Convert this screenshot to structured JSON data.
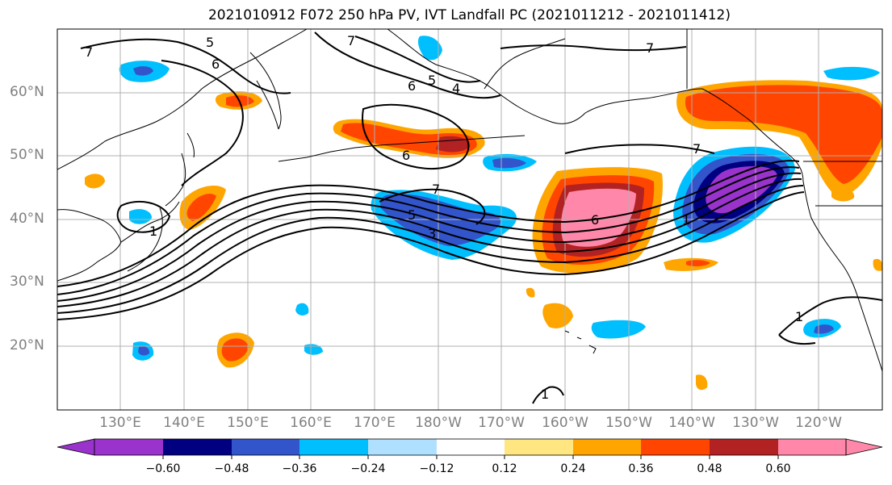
{
  "title": "2021010912 F072 250 hPa PV, IVT Landfall PC (2021011212 - 2021011412)",
  "lat_labels": [
    "60°N",
    "50°N",
    "40°N",
    "30°N",
    "20°N"
  ],
  "lon_labels": [
    "130°E",
    "140°E",
    "150°E",
    "160°E",
    "170°E",
    "180°W",
    "170°W",
    "160°W",
    "150°W",
    "140°W",
    "130°W",
    "120°W"
  ],
  "colorbar": {
    "colors": [
      "#9933cc",
      "#000080",
      "#3355cc",
      "#00bfff",
      "#b0e0ff",
      "#ffffff",
      "#ffe680",
      "#ffa500",
      "#ff4500",
      "#b22222",
      "#ff88aa"
    ],
    "labels": [
      "−0.60",
      "−0.48",
      "−0.36",
      "−0.24",
      "−0.12",
      "0.12",
      "0.24",
      "0.36",
      "0.48",
      "0.60"
    ]
  },
  "contour_labels": [
    "5",
    "7",
    "6",
    "7",
    "6",
    "5",
    "4",
    "7",
    "6",
    "7",
    "7",
    "5",
    "3",
    "6",
    "1",
    "1",
    "1",
    "1"
  ],
  "colors": {
    "grid": "#b0b0b0",
    "coast": "#000000",
    "contour": "#000000"
  }
}
